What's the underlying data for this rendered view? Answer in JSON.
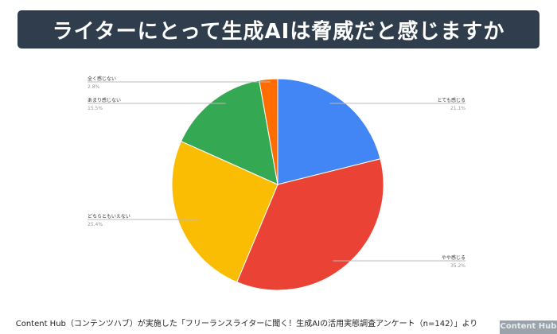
{
  "chart_data": {
    "type": "pie",
    "title": "ライターにとって生成AIは脅威だと感じますか",
    "categories": [
      "とても感じる",
      "やや感じる",
      "どちらともいえない",
      "あまり感じない",
      "全く感じない"
    ],
    "values": [
      21.1,
      35.2,
      25.4,
      15.5,
      2.8
    ],
    "value_labels": [
      "21.1%",
      "35.2%",
      "25.4%",
      "15.5%",
      "2.8%"
    ],
    "colors": [
      "#4285f4",
      "#ea4335",
      "#fbbc04",
      "#34a853",
      "#ff6d01"
    ],
    "start": "top",
    "direction": "clockwise"
  },
  "footer": "Content Hub（コンテンツハブ）が実施した「フリーランスライターに聞く！生成AIの活用実態調査アンケート（n=142）」より",
  "logo": "Content Hub"
}
